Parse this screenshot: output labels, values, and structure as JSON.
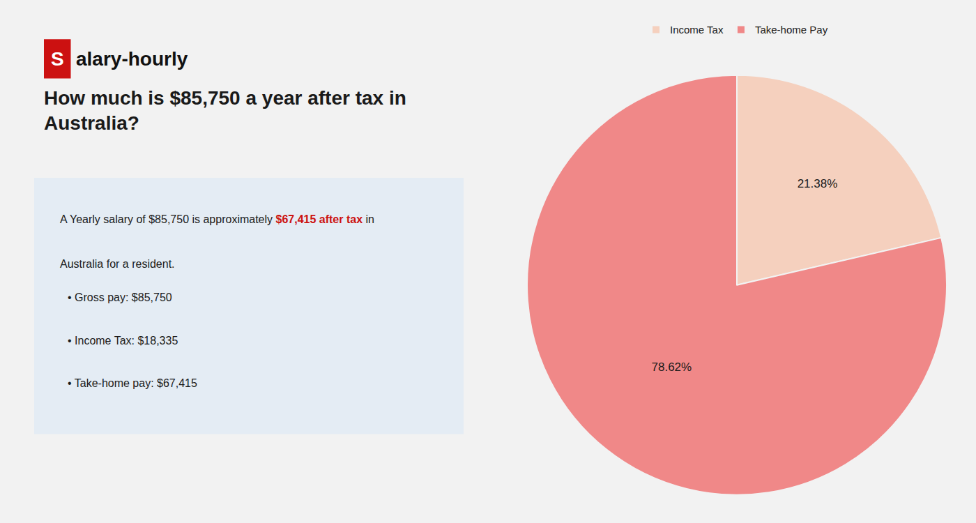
{
  "chart_data": {
    "type": "pie",
    "title": "How much is $85,750 a year after tax in\nAustralia?",
    "categories": [
      "Income Tax",
      "Take-home Pay"
    ],
    "values": [
      21.38,
      78.62
    ],
    "value_labels": [
      "21.38%",
      "78.62%"
    ],
    "colors": [
      "#f5d0be",
      "#f08888"
    ],
    "data_labels": true,
    "legend": "top",
    "annotations": [
      {
        "text": "S",
        "color": "#ffffff"
      },
      {
        "text": "alary-hourly",
        "color": "#111111"
      },
      {
        "text": "A Yearly salary of $85,750 is approximately "
      },
      {
        "text": "$67,415 after tax",
        "color": "#cc1111"
      },
      {
        "text": " in"
      },
      {
        "text": "Australia for a resident."
      },
      {
        "text": "• Gross pay: $85,750"
      },
      {
        "text": "• Income Tax: $18,335"
      },
      {
        "text": "• Take-home pay: $67,415"
      }
    ]
  }
}
